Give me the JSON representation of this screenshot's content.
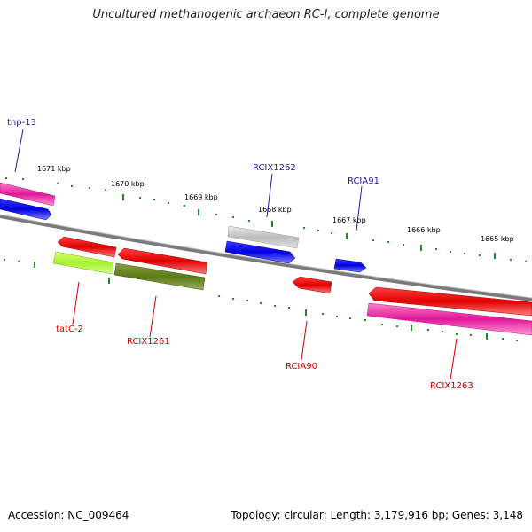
{
  "title": "Uncultured methanogenic archaeon RC-I, complete genome",
  "footer": {
    "accession": "Accession: NC_009464",
    "summary": "Topology: circular; Length: 3,179,916 bp; Genes: 3,148"
  },
  "colors": {
    "backbone": "#7a7a7a",
    "tick": "#1e8c1e",
    "label_blue": "#1a1aa8",
    "label_red": "#cc0000"
  },
  "ticks": [
    "1671 kbp",
    "1670 kbp",
    "1669 kbp",
    "1668 kbp",
    "1667 kbp",
    "1666 kbp",
    "1665 kbp"
  ],
  "genes": [
    {
      "name": "tnp-13",
      "color": "#1a1aa8"
    },
    {
      "name": "RCIX1262",
      "color": "#1a1aa8"
    },
    {
      "name": "RCIA91",
      "color": "#1a1aa8"
    },
    {
      "name": "tatC-2",
      "color": "#cc0000"
    },
    {
      "name": "RCIX1261",
      "color": "#cc0000"
    },
    {
      "name": "RCIA90",
      "color": "#cc0000"
    },
    {
      "name": "RCIX1263",
      "color": "#cc0000"
    }
  ]
}
